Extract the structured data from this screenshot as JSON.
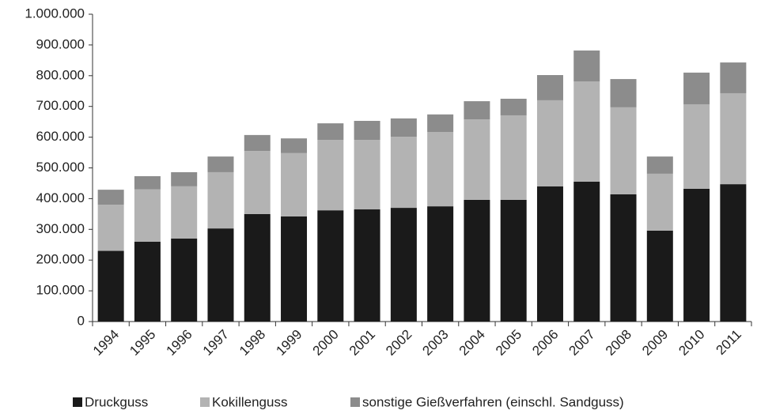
{
  "chart_data": {
    "type": "bar",
    "stacked": true,
    "categories": [
      "1994",
      "1995",
      "1996",
      "1997",
      "1998",
      "1999",
      "2000",
      "2001",
      "2002",
      "2003",
      "2004",
      "2005",
      "2006",
      "2007",
      "2008",
      "2009",
      "2010",
      "2011"
    ],
    "series": [
      {
        "name": "Druckguss",
        "color": "#1a1a1a",
        "values": [
          230000,
          260000,
          270000,
          303000,
          350000,
          342000,
          362000,
          365000,
          370000,
          375000,
          396000,
          396000,
          440000,
          455000,
          414000,
          296000,
          432000,
          447000
        ]
      },
      {
        "name": "Kokillenguss",
        "color": "#b3b3b3",
        "values": [
          150000,
          170000,
          170000,
          183000,
          205000,
          206000,
          229000,
          226000,
          231000,
          242000,
          262000,
          275000,
          280000,
          326000,
          283000,
          185000,
          275000,
          296000
        ]
      },
      {
        "name": "sonstige Gießverfahren (einschl. Sandguss)",
        "color": "#8c8c8c",
        "values": [
          49000,
          43000,
          46000,
          51000,
          52000,
          48000,
          54000,
          62000,
          60000,
          57000,
          59000,
          54000,
          82000,
          101000,
          92000,
          56000,
          103000,
          100000
        ]
      }
    ],
    "ylim": [
      0,
      1000000
    ],
    "yticks": [
      0,
      {
        "value": 100000,
        "label": "100.000"
      },
      {
        "value": 200000,
        "label": "200.000"
      },
      {
        "value": 300000,
        "label": "300.000"
      },
      {
        "value": 400000,
        "label": "400.000"
      },
      {
        "value": 500000,
        "label": "500.000"
      },
      {
        "value": 600000,
        "label": "600.000"
      },
      {
        "value": 700000,
        "label": "700.000"
      },
      {
        "value": 800000,
        "label": "800.000"
      },
      {
        "value": 900000,
        "label": "900.000"
      },
      {
        "value": 1000000,
        "label": "1.000.000"
      }
    ],
    "legend": "bottom"
  }
}
